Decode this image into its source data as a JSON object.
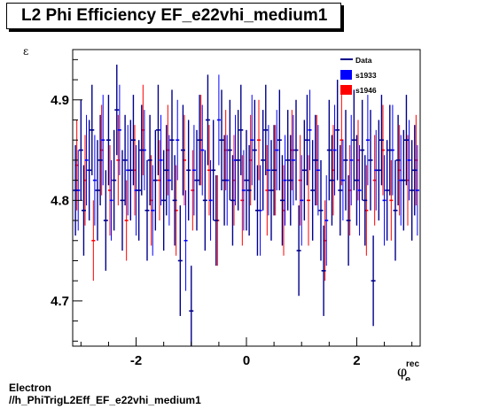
{
  "chart_data": {
    "type": "scatter",
    "title": "L2 Phi Efficiency EF_e22vhi_medium1",
    "xlabel": "φ",
    "xlabel_sub": "e",
    "xlabel_sup": "rec",
    "ylabel": "ε",
    "xlim": [
      -3.15,
      3.15
    ],
    "ylim": [
      4.655,
      4.95
    ],
    "xticks": [
      -2,
      0,
      2
    ],
    "yticks": [
      4.7,
      4.8,
      4.9
    ],
    "grid": false,
    "legend_position": "top-right",
    "legend": [
      {
        "label": "Data",
        "kind": "line",
        "color": "#00008b"
      },
      {
        "label": "s1933",
        "kind": "box",
        "color": "#0000ff"
      },
      {
        "label": "s1946",
        "kind": "box",
        "color": "#ff0000"
      }
    ],
    "series": [
      {
        "name": "s1946",
        "color": "#ff0000",
        "x": [
          -3.075,
          -2.925,
          -2.775,
          -2.625,
          -2.475,
          -2.325,
          -2.175,
          -2.025,
          -1.875,
          -1.725,
          -1.575,
          -1.425,
          -1.275,
          -1.125,
          -0.975,
          -0.825,
          -0.675,
          -0.525,
          -0.375,
          -0.225,
          -0.075,
          0.075,
          0.225,
          0.375,
          0.525,
          0.675,
          0.825,
          0.975,
          1.125,
          1.275,
          1.425,
          1.575,
          1.725,
          1.875,
          2.025,
          2.175,
          2.325,
          2.475,
          2.625,
          2.775,
          2.925,
          3.075
        ],
        "y": [
          4.835,
          4.82,
          4.76,
          4.85,
          4.81,
          4.84,
          4.78,
          4.83,
          4.87,
          4.8,
          4.82,
          4.85,
          4.79,
          4.84,
          4.81,
          4.86,
          4.83,
          4.78,
          4.85,
          4.82,
          4.8,
          4.84,
          4.86,
          4.81,
          4.83,
          4.79,
          4.85,
          4.82,
          4.8,
          4.84,
          4.76,
          4.83,
          4.86,
          4.81,
          4.84,
          4.79,
          4.82,
          4.85,
          4.8,
          4.83,
          4.82,
          4.84
        ],
        "err": [
          0.045,
          0.045,
          0.04,
          0.045,
          0.045,
          0.045,
          0.04,
          0.045,
          0.045,
          0.045,
          0.04,
          0.045,
          0.045,
          0.045,
          0.04,
          0.045,
          0.045,
          0.045,
          0.04,
          0.045,
          0.045,
          0.045,
          0.04,
          0.045,
          0.045,
          0.045,
          0.04,
          0.045,
          0.045,
          0.045,
          0.04,
          0.045,
          0.045,
          0.045,
          0.04,
          0.045,
          0.045,
          0.045,
          0.04,
          0.045,
          0.045,
          0.045
        ]
      },
      {
        "name": "s1933",
        "color": "#0000ff",
        "x": [
          -3.05,
          -2.9,
          -2.75,
          -2.6,
          -2.45,
          -2.3,
          -2.15,
          -2.0,
          -1.85,
          -1.7,
          -1.55,
          -1.4,
          -1.25,
          -1.1,
          -0.95,
          -0.8,
          -0.65,
          -0.5,
          -0.35,
          -0.2,
          -0.05,
          0.1,
          0.25,
          0.4,
          0.55,
          0.7,
          0.85,
          1.0,
          1.15,
          1.3,
          1.45,
          1.6,
          1.75,
          1.9,
          2.05,
          2.2,
          2.35,
          2.5,
          2.65,
          2.8,
          2.95,
          3.1
        ],
        "y": [
          4.81,
          4.84,
          4.82,
          4.86,
          4.8,
          4.87,
          4.83,
          4.81,
          4.85,
          4.79,
          4.84,
          4.82,
          4.86,
          4.76,
          4.83,
          4.85,
          4.8,
          4.88,
          4.82,
          4.84,
          4.81,
          4.86,
          4.79,
          4.83,
          4.85,
          4.82,
          4.84,
          4.8,
          4.87,
          4.83,
          4.78,
          4.85,
          4.82,
          4.84,
          4.81,
          4.86,
          4.83,
          4.8,
          4.85,
          4.82,
          4.84,
          4.81
        ],
        "err": [
          0.04,
          0.045,
          0.045,
          0.045,
          0.04,
          0.045,
          0.045,
          0.045,
          0.04,
          0.045,
          0.045,
          0.045,
          0.04,
          0.05,
          0.045,
          0.045,
          0.04,
          0.045,
          0.045,
          0.045,
          0.04,
          0.045,
          0.045,
          0.045,
          0.04,
          0.045,
          0.045,
          0.045,
          0.04,
          0.045,
          0.045,
          0.045,
          0.04,
          0.045,
          0.045,
          0.045,
          0.04,
          0.045,
          0.045,
          0.045,
          0.04,
          0.045
        ]
      },
      {
        "name": "Data",
        "color": "#00008b",
        "x": [
          -3.1,
          -3.0,
          -2.95,
          -2.85,
          -2.8,
          -2.7,
          -2.65,
          -2.55,
          -2.5,
          -2.4,
          -2.35,
          -2.25,
          -2.2,
          -2.1,
          -2.05,
          -1.95,
          -1.9,
          -1.8,
          -1.75,
          -1.65,
          -1.6,
          -1.5,
          -1.45,
          -1.35,
          -1.3,
          -1.2,
          -1.15,
          -1.05,
          -1.0,
          -0.9,
          -0.85,
          -0.75,
          -0.7,
          -0.6,
          -0.55,
          -0.45,
          -0.4,
          -0.3,
          -0.25,
          -0.15,
          -0.1,
          0.0,
          0.05,
          0.15,
          0.2,
          0.3,
          0.35,
          0.45,
          0.5,
          0.6,
          0.65,
          0.75,
          0.8,
          0.9,
          0.95,
          1.05,
          1.1,
          1.2,
          1.25,
          1.35,
          1.4,
          1.5,
          1.55,
          1.65,
          1.7,
          1.8,
          1.85,
          1.95,
          2.0,
          2.1,
          2.15,
          2.25,
          2.3,
          2.4,
          2.45,
          2.55,
          2.6,
          2.7,
          2.75,
          2.85,
          2.9,
          3.0,
          3.05
        ],
        "y": [
          4.81,
          4.85,
          4.79,
          4.83,
          4.87,
          4.81,
          4.84,
          4.78,
          4.86,
          4.82,
          4.89,
          4.8,
          4.84,
          4.83,
          4.86,
          4.81,
          4.85,
          4.79,
          4.84,
          4.82,
          4.87,
          4.8,
          4.83,
          4.86,
          4.8,
          4.74,
          4.85,
          4.83,
          4.69,
          4.82,
          4.86,
          4.8,
          4.88,
          4.83,
          4.78,
          4.86,
          4.82,
          4.85,
          4.8,
          4.84,
          4.87,
          4.82,
          4.81,
          4.85,
          4.79,
          4.84,
          4.87,
          4.81,
          4.83,
          4.86,
          4.8,
          4.84,
          4.82,
          4.85,
          4.75,
          4.83,
          4.86,
          4.81,
          4.84,
          4.79,
          4.73,
          4.85,
          4.82,
          4.87,
          4.81,
          4.84,
          4.78,
          4.86,
          4.82,
          4.85,
          4.8,
          4.84,
          4.72,
          4.83,
          4.86,
          4.81,
          4.85,
          4.79,
          4.84,
          4.82,
          4.86,
          4.81,
          4.83
        ],
        "err": [
          0.045,
          0.05,
          0.045,
          0.05,
          0.045,
          0.05,
          0.045,
          0.05,
          0.045,
          0.05,
          0.045,
          0.05,
          0.045,
          0.05,
          0.045,
          0.05,
          0.045,
          0.05,
          0.045,
          0.05,
          0.045,
          0.05,
          0.045,
          0.05,
          0.045,
          0.055,
          0.045,
          0.05,
          0.045,
          0.05,
          0.045,
          0.05,
          0.045,
          0.05,
          0.045,
          0.05,
          0.045,
          0.05,
          0.045,
          0.05,
          0.045,
          0.05,
          0.045,
          0.05,
          0.045,
          0.05,
          0.045,
          0.05,
          0.045,
          0.05,
          0.045,
          0.05,
          0.045,
          0.05,
          0.045,
          0.05,
          0.045,
          0.05,
          0.045,
          0.05,
          0.045,
          0.05,
          0.045,
          0.05,
          0.045,
          0.05,
          0.045,
          0.05,
          0.045,
          0.05,
          0.045,
          0.05,
          0.045,
          0.05,
          0.045,
          0.05,
          0.045,
          0.05,
          0.045,
          0.05,
          0.045,
          0.05,
          0.045
        ]
      }
    ]
  },
  "footer": {
    "line1": "Electron",
    "line2": "//h_PhiTrigL2Eff_EF_e22vhi_medium1"
  }
}
